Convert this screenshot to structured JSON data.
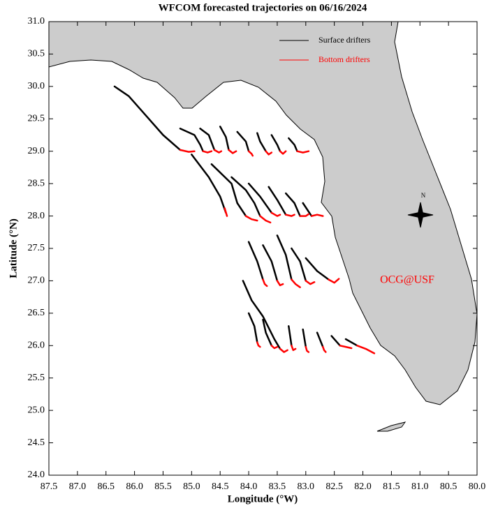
{
  "chart_data": {
    "type": "trajectory-map",
    "title": "WFCOM forecasted trajectories on 06/16/2024",
    "x_label": "Longitude (°W)",
    "y_label": "Latitude (°N)",
    "annotation": "OCG@USF",
    "compass_label": "N",
    "legend": "upper right",
    "xlim": [
      87.5,
      80.0
    ],
    "xticks": [
      87.5,
      {
        "value": 87,
        "label": "87.0"
      },
      86.5,
      {
        "value": 86,
        "label": "86.0"
      },
      85.5,
      {
        "value": 85,
        "label": "85.0"
      },
      84.5,
      {
        "value": 84,
        "label": "84.0"
      },
      83.5,
      {
        "value": 83,
        "label": "83.0"
      },
      82.5,
      {
        "value": 82,
        "label": "82.0"
      },
      81.5,
      {
        "value": 81,
        "label": "81.0"
      },
      80.5,
      {
        "value": 80,
        "label": "80.0"
      }
    ],
    "ylim": [
      24.0,
      31.0
    ],
    "yticks": [
      {
        "value": 24,
        "label": "24.0"
      },
      24.5,
      {
        "value": 25,
        "label": "25.0"
      },
      25.5,
      {
        "value": 26,
        "label": "26.0"
      },
      26.5,
      {
        "value": 27,
        "label": "27.0"
      },
      27.5,
      {
        "value": 28,
        "label": "28.0"
      },
      28.5,
      {
        "value": 29,
        "label": "29.0"
      },
      29.5,
      {
        "value": 30,
        "label": "30.0"
      },
      30.5,
      {
        "value": 31,
        "label": "31.0"
      }
    ],
    "series": [
      {
        "name": "Surface drifters",
        "color": "#000000",
        "tracks": [
          {
            "x": [
              86.35,
              86.1,
              85.8,
              85.5,
              85.2
            ],
            "y": [
              30.0,
              29.85,
              29.55,
              29.25,
              29.02
            ]
          },
          {
            "x": [
              85.2,
              84.95,
              84.85,
              84.8
            ],
            "y": [
              29.35,
              29.25,
              29.1,
              29.0
            ]
          },
          {
            "x": [
              84.85,
              84.7,
              84.6
            ],
            "y": [
              29.35,
              29.25,
              29.02
            ]
          },
          {
            "x": [
              84.5,
              84.4,
              84.35
            ],
            "y": [
              29.38,
              29.22,
              29.02
            ]
          },
          {
            "x": [
              84.2,
              84.05,
              84.0
            ],
            "y": [
              29.3,
              29.15,
              29.0
            ]
          },
          {
            "x": [
              83.85,
              83.8,
              83.7
            ],
            "y": [
              29.28,
              29.15,
              29.0
            ]
          },
          {
            "x": [
              83.6,
              83.5,
              83.45
            ],
            "y": [
              29.25,
              29.1,
              29.0
            ]
          },
          {
            "x": [
              83.3,
              83.2,
              83.15
            ],
            "y": [
              29.2,
              29.1,
              29.0
            ]
          },
          {
            "x": [
              85.0,
              84.7,
              84.5,
              84.4
            ],
            "y": [
              28.95,
              28.6,
              28.3,
              28.05
            ]
          },
          {
            "x": [
              84.65,
              84.3,
              84.2,
              84.05
            ],
            "y": [
              28.8,
              28.5,
              28.2,
              28.0
            ]
          },
          {
            "x": [
              84.3,
              84.05,
              83.9,
              83.8
            ],
            "y": [
              28.6,
              28.4,
              28.2,
              28.0
            ]
          },
          {
            "x": [
              84.0,
              83.8,
              83.6
            ],
            "y": [
              28.5,
              28.3,
              28.05
            ]
          },
          {
            "x": [
              83.65,
              83.5,
              83.35
            ],
            "y": [
              28.45,
              28.25,
              28.02
            ]
          },
          {
            "x": [
              83.35,
              83.2,
              83.1
            ],
            "y": [
              28.35,
              28.2,
              28.0
            ]
          },
          {
            "x": [
              83.05,
              82.9
            ],
            "y": [
              28.2,
              28.0
            ]
          },
          {
            "x": [
              84.0,
              83.85,
              83.75
            ],
            "y": [
              27.6,
              27.3,
              27.02
            ]
          },
          {
            "x": [
              83.75,
              83.6,
              83.5
            ],
            "y": [
              27.55,
              27.3,
              27.0
            ]
          },
          {
            "x": [
              83.5,
              83.35,
              83.25
            ],
            "y": [
              27.7,
              27.4,
              27.02
            ]
          },
          {
            "x": [
              83.25,
              83.1,
              83.0
            ],
            "y": [
              27.5,
              27.3,
              27.0
            ]
          },
          {
            "x": [
              83.0,
              82.8,
              82.6
            ],
            "y": [
              27.35,
              27.15,
              27.02
            ]
          },
          {
            "x": [
              84.1,
              83.95,
              83.75,
              83.55,
              83.45
            ],
            "y": [
              27.0,
              26.7,
              26.45,
              26.1,
              25.95
            ]
          },
          {
            "x": [
              84.0,
              83.9,
              83.85
            ],
            "y": [
              26.5,
              26.3,
              26.05
            ]
          },
          {
            "x": [
              83.75,
              83.7,
              83.6
            ],
            "y": [
              26.4,
              26.2,
              26.0
            ]
          },
          {
            "x": [
              83.3,
              83.25
            ],
            "y": [
              26.3,
              26.0
            ]
          },
          {
            "x": [
              83.05,
              83.0
            ],
            "y": [
              26.25,
              25.98
            ]
          },
          {
            "x": [
              82.8,
              82.7
            ],
            "y": [
              26.2,
              25.98
            ]
          },
          {
            "x": [
              82.55,
              82.4
            ],
            "y": [
              26.15,
              26.0
            ]
          },
          {
            "x": [
              82.3,
              82.1
            ],
            "y": [
              26.1,
              26.0
            ]
          }
        ]
      },
      {
        "name": "Bottom drifters",
        "color": "#ff0000",
        "tracks": [
          {
            "x": [
              85.2,
              85.05,
              84.95
            ],
            "y": [
              29.02,
              28.99,
              29.0
            ]
          },
          {
            "x": [
              84.8,
              84.72,
              84.65
            ],
            "y": [
              29.0,
              28.98,
              29.0
            ]
          },
          {
            "x": [
              84.6,
              84.52,
              84.48
            ],
            "y": [
              29.02,
              28.98,
              29.0
            ]
          },
          {
            "x": [
              84.35,
              84.28,
              84.22
            ],
            "y": [
              29.02,
              28.97,
              29.0
            ]
          },
          {
            "x": [
              84.0,
              83.95,
              83.93
            ],
            "y": [
              29.0,
              28.96,
              28.93
            ]
          },
          {
            "x": [
              83.7,
              83.65,
              83.6
            ],
            "y": [
              29.0,
              28.95,
              28.98
            ]
          },
          {
            "x": [
              83.45,
              83.4,
              83.35
            ],
            "y": [
              29.0,
              28.96,
              29.0
            ]
          },
          {
            "x": [
              83.15,
              83.05,
              82.95
            ],
            "y": [
              29.0,
              28.98,
              29.0
            ]
          },
          {
            "x": [
              84.4,
              84.42,
              84.38
            ],
            "y": [
              28.05,
              28.12,
              28.0
            ]
          },
          {
            "x": [
              84.05,
              83.95,
              83.85
            ],
            "y": [
              28.0,
              27.95,
              27.93
            ]
          },
          {
            "x": [
              83.8,
              83.7,
              83.62
            ],
            "y": [
              28.0,
              27.93,
              27.9
            ]
          },
          {
            "x": [
              83.6,
              83.5,
              83.45
            ],
            "y": [
              28.05,
              28.0,
              28.02
            ]
          },
          {
            "x": [
              83.35,
              83.25,
              83.2
            ],
            "y": [
              28.02,
              28.0,
              28.02
            ]
          },
          {
            "x": [
              83.1,
              83.0,
              82.95
            ],
            "y": [
              28.0,
              28.0,
              28.03
            ]
          },
          {
            "x": [
              82.9,
              82.8,
              82.7
            ],
            "y": [
              28.0,
              28.02,
              28.0
            ]
          },
          {
            "x": [
              83.75,
              83.72,
              83.68
            ],
            "y": [
              27.02,
              26.95,
              26.92
            ]
          },
          {
            "x": [
              83.5,
              83.45,
              83.4
            ],
            "y": [
              27.0,
              26.93,
              26.95
            ]
          },
          {
            "x": [
              83.25,
              83.18,
              83.1
            ],
            "y": [
              27.02,
              26.95,
              26.9
            ]
          },
          {
            "x": [
              83.0,
              82.92,
              82.85
            ],
            "y": [
              27.0,
              26.95,
              26.98
            ]
          },
          {
            "x": [
              82.6,
              82.5,
              82.42
            ],
            "y": [
              27.02,
              26.97,
              27.03
            ]
          },
          {
            "x": [
              83.45,
              83.38,
              83.32
            ],
            "y": [
              25.95,
              25.9,
              25.93
            ]
          },
          {
            "x": [
              83.85,
              83.83,
              83.8
            ],
            "y": [
              26.05,
              26.0,
              25.98
            ]
          },
          {
            "x": [
              83.6,
              83.55,
              83.5
            ],
            "y": [
              26.0,
              25.96,
              25.98
            ]
          },
          {
            "x": [
              83.25,
              83.22,
              83.18
            ],
            "y": [
              26.0,
              25.93,
              25.95
            ]
          },
          {
            "x": [
              83.0,
              82.98,
              82.95
            ],
            "y": [
              25.98,
              25.92,
              25.9
            ]
          },
          {
            "x": [
              82.7,
              82.68,
              82.65
            ],
            "y": [
              25.98,
              25.93,
              25.9
            ]
          },
          {
            "x": [
              82.4,
              82.3,
              82.2
            ],
            "y": [
              26.0,
              25.98,
              25.96
            ]
          },
          {
            "x": [
              82.1,
              81.95,
              81.8
            ],
            "y": [
              26.0,
              25.95,
              25.88
            ]
          }
        ]
      }
    ]
  }
}
